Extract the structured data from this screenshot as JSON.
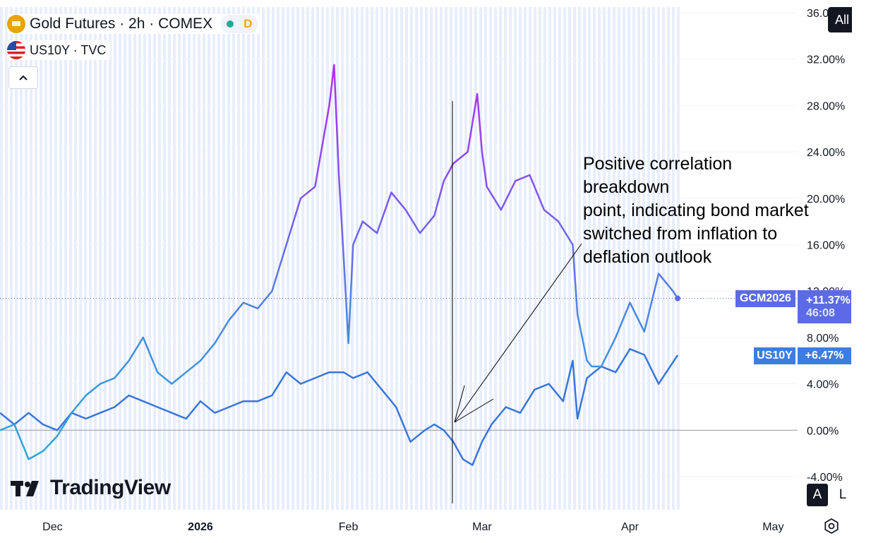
{
  "legend": {
    "main_symbol": "Gold Futures · 2h · COMEX",
    "pill_letter": "D",
    "compare_symbol": "US10Y · TVC"
  },
  "toolbar": {
    "all_label": "All",
    "auto_label": "A",
    "log_label": "L"
  },
  "branding": {
    "logo_text": "TradingView"
  },
  "annotation": {
    "text": "Positive correlation breakdown\npoint, indicating bond market\nswitched from inflation to\ndeflation outlook"
  },
  "price_tags": {
    "gold": {
      "symbol": "GCM2026",
      "change": "+11.37%",
      "countdown": "46:08",
      "color": "#5b6be6"
    },
    "us10y": {
      "symbol": "US10Y",
      "change": "+6.47%",
      "color": "#3d7de0"
    }
  },
  "colors": {
    "gold_start": "#4a90e2",
    "gold_peak": "#a134f0",
    "us10y": "#3976d9",
    "us10y_early": "#2aa3d8",
    "zero_line": "#9598a1",
    "bg_stripe": "#e8eefc"
  },
  "chart_data": {
    "type": "line",
    "title": "",
    "xlabel": "",
    "ylabel": "",
    "y_unit": "%",
    "y_ticks": [
      "36.00%",
      "32.00%",
      "28.00%",
      "24.00%",
      "20.00%",
      "16.00%",
      "12.00%",
      "8.00%",
      "4.00%",
      "0.00%",
      "-4.00%"
    ],
    "y_tick_values": [
      36,
      32,
      28,
      24,
      20,
      16,
      12,
      8,
      4,
      0,
      -4
    ],
    "ylim": [
      -5,
      36.5
    ],
    "x_ticks": [
      "Dec",
      "2026",
      "Feb",
      "Mar",
      "Apr",
      "May"
    ],
    "x_tick_dates": [
      "2025-12-01",
      "2026-01-01",
      "2026-02-01",
      "2026-03-01",
      "2026-04-01",
      "2026-05-01"
    ],
    "xlim": [
      "2025-11-20",
      "2026-05-15"
    ],
    "grid": true,
    "series": [
      {
        "name": "Gold Futures",
        "x": [
          "2025-11-20",
          "2025-11-23",
          "2025-11-26",
          "2025-11-29",
          "2025-12-02",
          "2025-12-05",
          "2025-12-08",
          "2025-12-11",
          "2025-12-14",
          "2025-12-17",
          "2025-12-20",
          "2025-12-23",
          "2025-12-26",
          "2025-12-29",
          "2026-01-01",
          "2026-01-04",
          "2026-01-07",
          "2026-01-10",
          "2026-01-13",
          "2026-01-16",
          "2026-01-19",
          "2026-01-22",
          "2026-01-25",
          "2026-01-28",
          "2026-01-29",
          "2026-01-30",
          "2026-01-31",
          "2026-02-01",
          "2026-02-02",
          "2026-02-04",
          "2026-02-07",
          "2026-02-10",
          "2026-02-13",
          "2026-02-16",
          "2026-02-19",
          "2026-02-21",
          "2026-02-23",
          "2026-02-26",
          "2026-02-28",
          "2026-03-01",
          "2026-03-02",
          "2026-03-05",
          "2026-03-08",
          "2026-03-11",
          "2026-03-14",
          "2026-03-17",
          "2026-03-20",
          "2026-03-21",
          "2026-03-23",
          "2026-03-24",
          "2026-03-26",
          "2026-03-29",
          "2026-04-01",
          "2026-04-04",
          "2026-04-07",
          "2026-04-10",
          "2026-04-11"
        ],
        "values": [
          0,
          0.5,
          -2.5,
          -1.8,
          -0.5,
          1.5,
          3,
          4,
          4.5,
          6,
          8,
          5,
          4,
          5,
          6,
          7.5,
          9.5,
          11,
          10.5,
          12,
          16,
          20,
          21,
          28,
          31.5,
          22,
          15,
          7.5,
          16,
          18,
          17,
          20.5,
          19,
          17,
          18.5,
          21.5,
          23,
          24,
          29,
          24,
          21,
          19,
          21.5,
          22,
          19,
          18,
          16,
          10,
          6,
          5.5,
          5.5,
          8,
          11,
          8.5,
          13.5,
          12,
          11.37
        ],
        "color": "#8a4cec"
      },
      {
        "name": "US10Y",
        "x": [
          "2025-11-20",
          "2025-11-23",
          "2025-11-26",
          "2025-11-29",
          "2025-12-02",
          "2025-12-05",
          "2025-12-08",
          "2025-12-11",
          "2025-12-14",
          "2025-12-17",
          "2025-12-20",
          "2025-12-23",
          "2025-12-26",
          "2025-12-29",
          "2026-01-01",
          "2026-01-04",
          "2026-01-07",
          "2026-01-10",
          "2026-01-13",
          "2026-01-16",
          "2026-01-19",
          "2026-01-22",
          "2026-01-25",
          "2026-01-28",
          "2026-01-31",
          "2026-02-02",
          "2026-02-05",
          "2026-02-08",
          "2026-02-11",
          "2026-02-14",
          "2026-02-17",
          "2026-02-19",
          "2026-02-21",
          "2026-02-23",
          "2026-02-25",
          "2026-02-27",
          "2026-03-01",
          "2026-03-03",
          "2026-03-06",
          "2026-03-09",
          "2026-03-12",
          "2026-03-15",
          "2026-03-18",
          "2026-03-20",
          "2026-03-21",
          "2026-03-23",
          "2026-03-26",
          "2026-03-29",
          "2026-04-01",
          "2026-04-04",
          "2026-04-07",
          "2026-04-11"
        ],
        "values": [
          1.5,
          0.5,
          1.5,
          0.5,
          0,
          1.5,
          1,
          1.5,
          2,
          3,
          2.5,
          2,
          1.5,
          1,
          2.5,
          1.5,
          2,
          2.5,
          2.5,
          3,
          5,
          4,
          4.5,
          5,
          5,
          4.5,
          5,
          3.5,
          2,
          -1,
          0,
          0.5,
          0,
          -1,
          -2.5,
          -3,
          -1,
          0.5,
          2,
          1.5,
          3.5,
          4,
          2.5,
          6,
          1,
          4.5,
          5.5,
          5,
          7,
          6.5,
          4,
          6.47
        ],
        "color": "#3976d9"
      }
    ]
  }
}
